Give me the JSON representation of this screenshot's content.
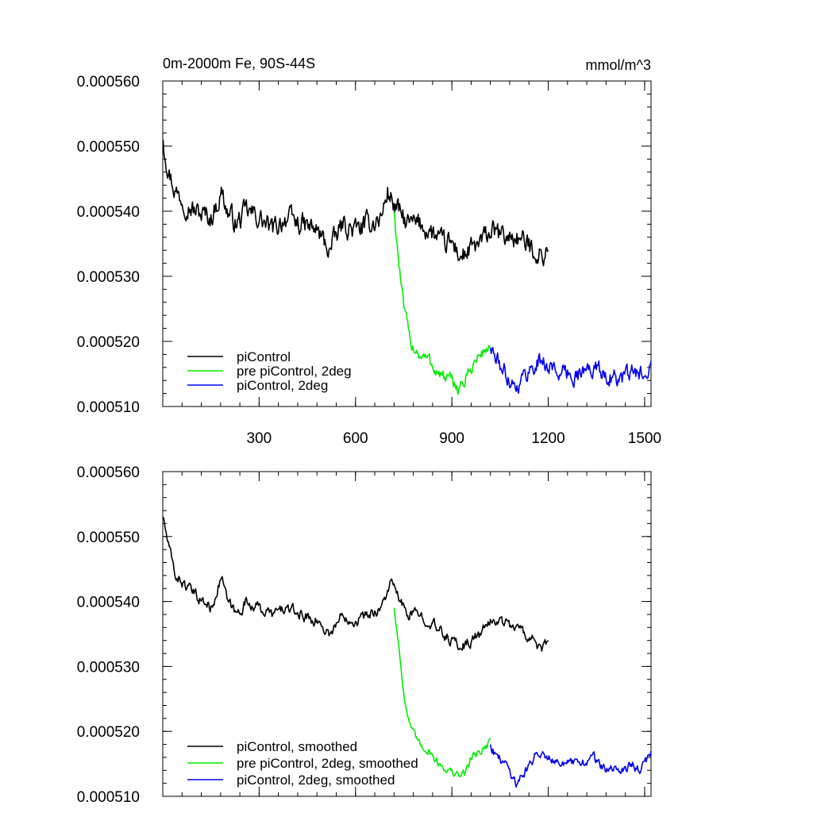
{
  "chart_data": [
    {
      "type": "line",
      "title_left": "0m-2000m Fe, 90S-44S",
      "title_right": "mmol/m^3",
      "xlim": [
        0,
        1520
      ],
      "ylim": [
        0.00051,
        0.00056
      ],
      "x_ticks": [
        300,
        600,
        900,
        1200,
        1500
      ],
      "x_tick_labels": [
        "300",
        "600",
        "900",
        "1200",
        "1500"
      ],
      "y_ticks": [
        0.00051,
        0.00052,
        0.00053,
        0.00054,
        0.00055,
        0.00056
      ],
      "y_tick_labels": [
        "0.000510",
        "0.000520",
        "0.000530",
        "0.000540",
        "0.000550",
        "0.000560"
      ],
      "legend_position": "bottom-left",
      "grid": false,
      "series": [
        {
          "name": "piControl",
          "color": "#000000",
          "noise": 1.4e-06,
          "points": [
            [
              1,
              0.000551
            ],
            [
              20,
              0.000546
            ],
            [
              40,
              0.000543
            ],
            [
              60,
              0.000542
            ],
            [
              100,
              0.00054
            ],
            [
              150,
              0.000539
            ],
            [
              185,
              0.000543
            ],
            [
              200,
              0.00054
            ],
            [
              230,
              0.000538
            ],
            [
              260,
              0.00054
            ],
            [
              300,
              0.000539
            ],
            [
              340,
              0.000537
            ],
            [
              380,
              0.000539
            ],
            [
              430,
              0.000538
            ],
            [
              480,
              0.000537
            ],
            [
              520,
              0.000534
            ],
            [
              560,
              0.000538
            ],
            [
              600,
              0.000537
            ],
            [
              640,
              0.000538
            ],
            [
              680,
              0.000539
            ],
            [
              700,
              0.000543
            ],
            [
              720,
              0.000541
            ],
            [
              760,
              0.000538
            ],
            [
              800,
              0.000538
            ],
            [
              830,
              0.000537
            ],
            [
              870,
              0.000535
            ],
            [
              900,
              0.000535
            ],
            [
              930,
              0.000533
            ],
            [
              960,
              0.000534
            ],
            [
              990,
              0.000535
            ],
            [
              1020,
              0.000537
            ],
            [
              1060,
              0.000536
            ],
            [
              1100,
              0.000536
            ],
            [
              1130,
              0.000535
            ],
            [
              1160,
              0.000534
            ],
            [
              1180,
              0.000533
            ],
            [
              1200,
              0.000534
            ]
          ]
        },
        {
          "name": "pre piControl, 2deg",
          "color": "#00ee00",
          "noise": 9e-07,
          "points": [
            [
              720,
              0.00054
            ],
            [
              735,
              0.000532
            ],
            [
              750,
              0.000525
            ],
            [
              770,
              0.00052
            ],
            [
              800,
              0.000518
            ],
            [
              830,
              0.000517
            ],
            [
              860,
              0.000515
            ],
            [
              890,
              0.000514
            ],
            [
              920,
              0.000513
            ],
            [
              945,
              0.000514
            ],
            [
              960,
              0.000516
            ],
            [
              990,
              0.000518
            ],
            [
              1010,
              0.000519
            ],
            [
              1020,
              0.000519
            ]
          ]
        },
        {
          "name": "piControl, 2deg",
          "color": "#0000ee",
          "noise": 1.1e-06,
          "points": [
            [
              1020,
              0.000519
            ],
            [
              1040,
              0.000517
            ],
            [
              1070,
              0.000515
            ],
            [
              1100,
              0.000513
            ],
            [
              1130,
              0.000515
            ],
            [
              1170,
              0.000517
            ],
            [
              1210,
              0.000516
            ],
            [
              1250,
              0.000515
            ],
            [
              1300,
              0.000515
            ],
            [
              1340,
              0.000516
            ],
            [
              1380,
              0.000515
            ],
            [
              1420,
              0.000514
            ],
            [
              1460,
              0.000515
            ],
            [
              1490,
              0.000515
            ],
            [
              1520,
              0.000517
            ]
          ]
        }
      ]
    },
    {
      "type": "line",
      "xlim": [
        0,
        1520
      ],
      "ylim": [
        0.00051,
        0.00056
      ],
      "x_ticks": [
        300,
        600,
        900,
        1200,
        1500
      ],
      "x_tick_labels": [],
      "y_ticks": [
        0.00051,
        0.00052,
        0.00053,
        0.00054,
        0.00055,
        0.00056
      ],
      "y_tick_labels": [
        "0.000510",
        "0.000520",
        "0.000530",
        "0.000540",
        "0.000550",
        "0.000560"
      ],
      "legend_position": "bottom-left",
      "grid": false,
      "series": [
        {
          "name": "piControl, smoothed",
          "color": "#000000",
          "noise": 7e-07,
          "points": [
            [
              1,
              0.000553
            ],
            [
              20,
              0.000548
            ],
            [
              40,
              0.000544
            ],
            [
              60,
              0.000543
            ],
            [
              100,
              0.000541
            ],
            [
              150,
              0.000539
            ],
            [
              185,
              0.000544
            ],
            [
              200,
              0.00054
            ],
            [
              230,
              0.000538
            ],
            [
              260,
              0.00054
            ],
            [
              300,
              0.000539
            ],
            [
              340,
              0.000538
            ],
            [
              380,
              0.000539
            ],
            [
              430,
              0.000538
            ],
            [
              480,
              0.000537
            ],
            [
              520,
              0.000535
            ],
            [
              560,
              0.000538
            ],
            [
              600,
              0.000537
            ],
            [
              640,
              0.000538
            ],
            [
              680,
              0.000539
            ],
            [
              710,
              0.000543
            ],
            [
              730,
              0.000541
            ],
            [
              760,
              0.000538
            ],
            [
              800,
              0.000538
            ],
            [
              830,
              0.000537
            ],
            [
              870,
              0.000535
            ],
            [
              900,
              0.000534
            ],
            [
              930,
              0.000533
            ],
            [
              960,
              0.000534
            ],
            [
              990,
              0.000535
            ],
            [
              1020,
              0.000537
            ],
            [
              1060,
              0.000537
            ],
            [
              1100,
              0.000536
            ],
            [
              1130,
              0.000535
            ],
            [
              1160,
              0.000534
            ],
            [
              1180,
              0.000532
            ],
            [
              1200,
              0.000534
            ]
          ]
        },
        {
          "name": "pre piControl, 2deg, smoothed",
          "color": "#00ee00",
          "noise": 5e-07,
          "points": [
            [
              720,
              0.000539
            ],
            [
              740,
              0.000531
            ],
            [
              755,
              0.000524
            ],
            [
              775,
              0.00052
            ],
            [
              800,
              0.000518
            ],
            [
              830,
              0.000517
            ],
            [
              860,
              0.000515
            ],
            [
              890,
              0.000514
            ],
            [
              920,
              0.000513
            ],
            [
              945,
              0.000514
            ],
            [
              960,
              0.000516
            ],
            [
              990,
              0.000517
            ],
            [
              1010,
              0.000518
            ],
            [
              1020,
              0.000519
            ]
          ]
        },
        {
          "name": "piControl, 2deg, smoothed",
          "color": "#0000ee",
          "noise": 6e-07,
          "points": [
            [
              1020,
              0.000518
            ],
            [
              1040,
              0.000516
            ],
            [
              1070,
              0.000515
            ],
            [
              1100,
              0.000512
            ],
            [
              1130,
              0.000514
            ],
            [
              1170,
              0.000517
            ],
            [
              1210,
              0.000516
            ],
            [
              1250,
              0.000515
            ],
            [
              1300,
              0.000515
            ],
            [
              1340,
              0.000516
            ],
            [
              1380,
              0.000514
            ],
            [
              1420,
              0.000514
            ],
            [
              1460,
              0.000515
            ],
            [
              1490,
              0.000514
            ],
            [
              1520,
              0.000517
            ]
          ]
        }
      ]
    }
  ]
}
